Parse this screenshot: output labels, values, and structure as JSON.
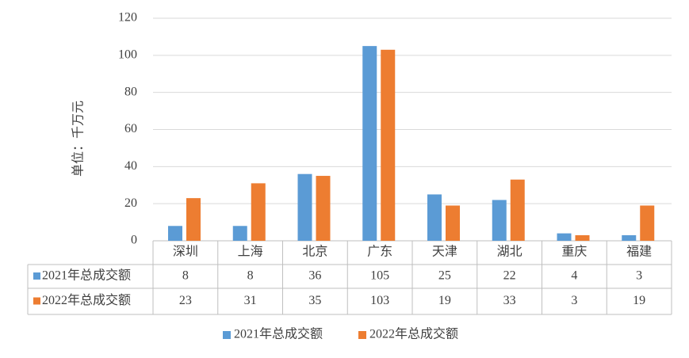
{
  "chart_data": {
    "type": "bar",
    "y_label": "单位：千万元",
    "categories": [
      "深圳",
      "上海",
      "北京",
      "广东",
      "天津",
      "湖北",
      "重庆",
      "福建"
    ],
    "series": [
      {
        "name": "2021年总成交额",
        "color": "#5b9bd5",
        "values": [
          8,
          8,
          36,
          105,
          25,
          22,
          4,
          3
        ]
      },
      {
        "name": "2022年总成交额",
        "color": "#ed7d31",
        "values": [
          23,
          31,
          35,
          103,
          19,
          33,
          3,
          19
        ]
      }
    ],
    "ylim": [
      0,
      120
    ],
    "yticks": [
      0,
      20,
      40,
      60,
      80,
      100,
      120
    ],
    "grid": true
  }
}
